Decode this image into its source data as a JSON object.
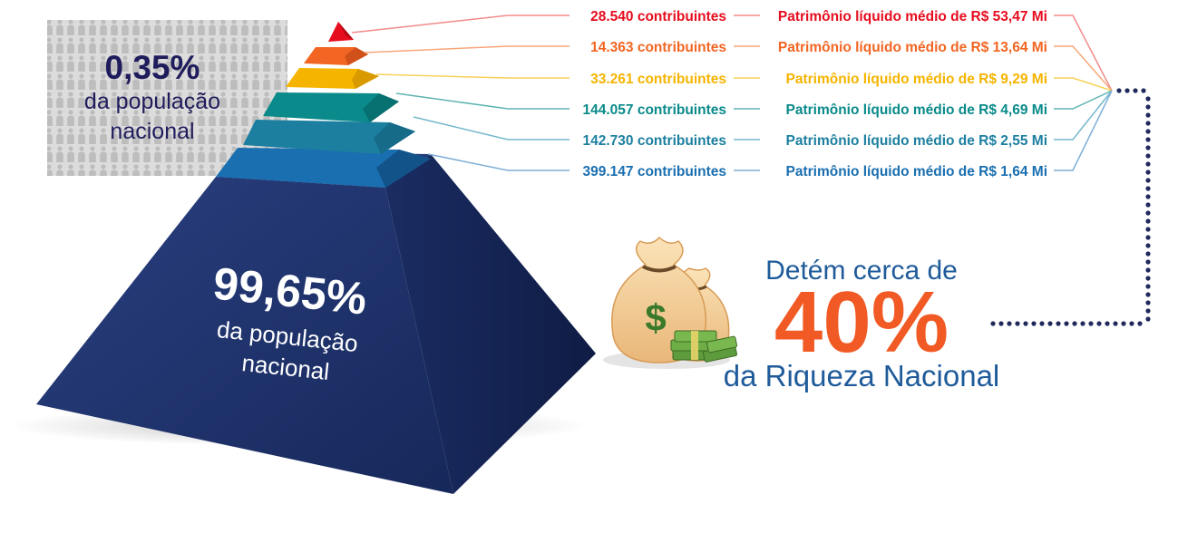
{
  "colors": {
    "tier_1": "#e60d1e",
    "tier_2": "#f26522",
    "tier_3": "#f5b400",
    "tier_4": "#0a8a8a",
    "tier_5": "#1c7fa0",
    "tier_6": "#1a6fb0",
    "pyramid_base": "#1b2f66",
    "top_percent": "#1f1c5c",
    "headline_blue": "#1f5b9a",
    "headline_orange": "#f15a24",
    "dots": "#1f2a5c",
    "people_bg": "#d0d0d0"
  },
  "top_box": {
    "percent": "0,35%",
    "line1": "da população",
    "line2": "nacional"
  },
  "pyramid": {
    "percent": "99,65%",
    "line1": "da população",
    "line2": "nacional"
  },
  "tiers": [
    {
      "count": "28.540 contribuintes",
      "wealth": "Patrimônio líquido médio de R$ 53,47 Mi"
    },
    {
      "count": "14.363 contribuintes",
      "wealth": "Patrimônio líquido médio de R$ 13,64 Mi"
    },
    {
      "count": "33.261 contribuintes",
      "wealth": "Patrimônio líquido médio de R$ 9,29 Mi"
    },
    {
      "count": "144.057 contribuintes",
      "wealth": "Patrimônio líquido médio de R$ 4,69 Mi"
    },
    {
      "count": "142.730 contribuintes",
      "wealth": "Patrimônio líquido médio de R$ 2,55 Mi"
    },
    {
      "count": "399.147 contribuintes",
      "wealth": "Patrimônio líquido médio de R$ 1,64 Mi"
    }
  ],
  "headline": {
    "line1": "Detém cerca de",
    "percent": "40%",
    "line2": "da Riqueza Nacional"
  },
  "icons": {
    "money_bags": "money-bags-icon",
    "people_pattern": "people-pattern-icon"
  }
}
